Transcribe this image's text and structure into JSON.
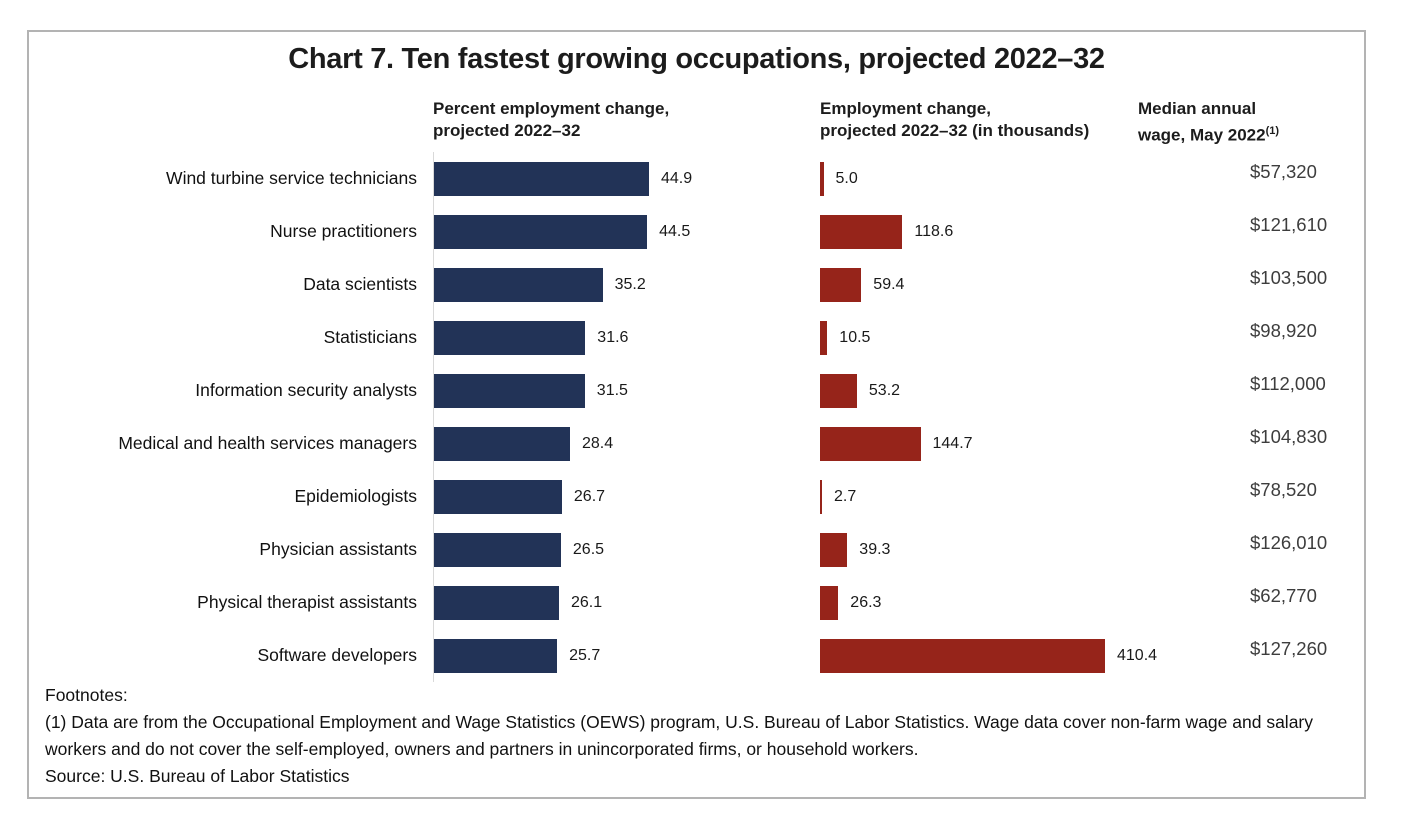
{
  "title": "Chart 7. Ten fastest growing occupations, projected 2022–32",
  "columns": {
    "percent": {
      "line1": "Percent employment change,",
      "line2": "projected 2022–32"
    },
    "employment": {
      "line1": "Employment change,",
      "line2": "projected 2022–32 (in thousands)"
    },
    "wage": {
      "line1": "Median annual",
      "line2": "wage, May 2022",
      "superscript": "(1)"
    }
  },
  "footnotes": {
    "heading": "Footnotes:",
    "note1": "(1) Data are from the Occupational Employment and Wage Statistics (OEWS) program, U.S. Bureau of Labor Statistics. Wage data cover non-farm wage and salary workers and do not cover the self-employed, owners and partners in unincorporated firms, or household workers.",
    "source": "Source: U.S. Bureau of Labor Statistics"
  },
  "colors": {
    "navy_bar": "#223357",
    "red_bar": "#96241A",
    "axis_line": "#D9D9D9",
    "frame_border": "#B3B3B3",
    "wage_text": "#3D3D3D"
  },
  "chart_data": [
    {
      "type": "bar",
      "orientation": "horizontal",
      "title": "Percent employment change, projected 2022–32",
      "categories": [
        "Wind turbine service technicians",
        "Nurse practitioners",
        "Data scientists",
        "Statisticians",
        "Information security analysts",
        "Medical and health services managers",
        "Epidemiologists",
        "Physician assistants",
        "Physical therapist assistants",
        "Software developers"
      ],
      "values": [
        44.9,
        44.5,
        35.2,
        31.6,
        31.5,
        28.4,
        26.7,
        26.5,
        26.1,
        25.7
      ],
      "bar_color": "#223357",
      "data_labels": true,
      "xlim": [
        0,
        48
      ],
      "grid": false,
      "legend": "none"
    },
    {
      "type": "bar",
      "orientation": "horizontal",
      "title": "Employment change, projected 2022–32 (in thousands)",
      "categories": [
        "Wind turbine service technicians",
        "Nurse practitioners",
        "Data scientists",
        "Statisticians",
        "Information security analysts",
        "Medical and health services managers",
        "Epidemiologists",
        "Physician assistants",
        "Physical therapist assistants",
        "Software developers"
      ],
      "values": [
        5.0,
        118.6,
        59.4,
        10.5,
        53.2,
        144.7,
        2.7,
        39.3,
        26.3,
        410.4
      ],
      "bar_color": "#96241A",
      "data_labels": true,
      "xlim": [
        0,
        440
      ],
      "grid": false,
      "legend": "none"
    },
    {
      "type": "table",
      "title": "Median annual wage, May 2022(1)",
      "categories": [
        "Wind turbine service technicians",
        "Nurse practitioners",
        "Data scientists",
        "Statisticians",
        "Information security analysts",
        "Medical and health services managers",
        "Epidemiologists",
        "Physician assistants",
        "Physical therapist assistants",
        "Software developers"
      ],
      "values": [
        "$57,320",
        "$121,610",
        "$103,500",
        "$98,920",
        "$112,000",
        "$104,830",
        "$78,520",
        "$126,010",
        "$62,770",
        "$127,260"
      ]
    }
  ]
}
